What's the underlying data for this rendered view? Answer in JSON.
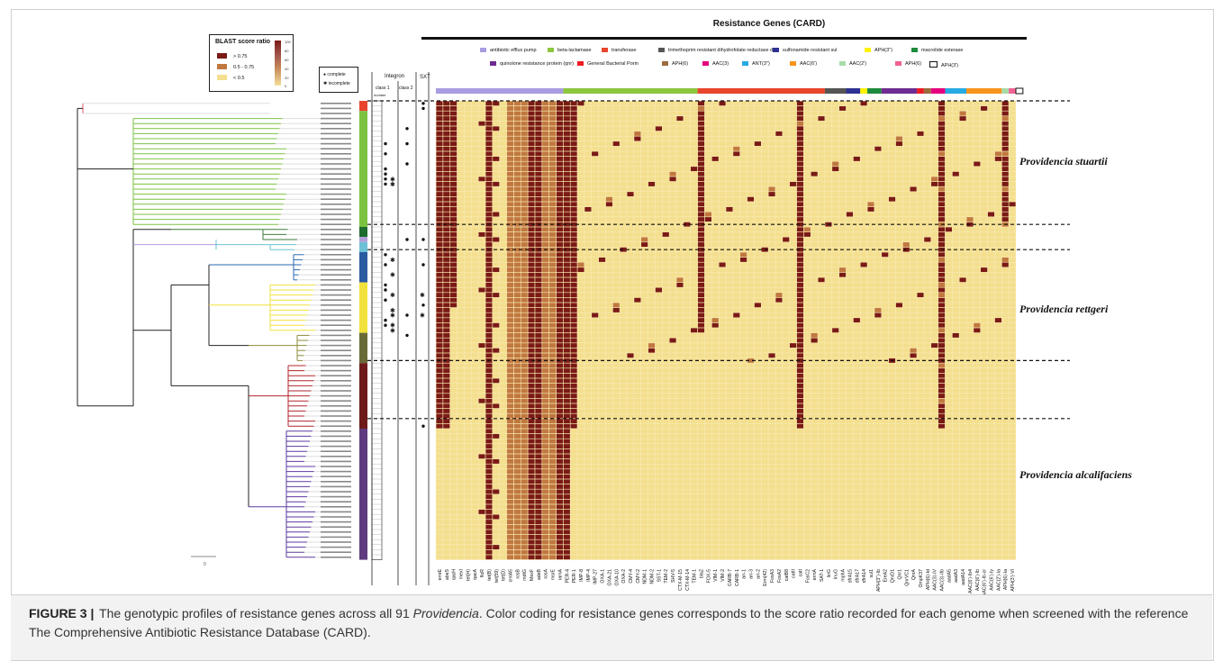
{
  "figure": {
    "resistance_title": "Resistance Genes (CARD)",
    "blast_legend": {
      "title": "BLAST score ratio",
      "rows": [
        {
          "label": "> 0.75",
          "color": "#7a1a16"
        },
        {
          "label": "0.5 - 0.75",
          "color": "#c07840"
        },
        {
          "label": "< 0.5",
          "color": "#f4df8f"
        }
      ],
      "scale_ticks": [
        "100",
        "80",
        "60",
        "40",
        "20",
        "0"
      ]
    },
    "icon_legend": {
      "complete": "complete",
      "incomplete": "incomplete",
      "complete_icon": "filled-circle-icon",
      "incomplete_icon": "asterisk-icon"
    },
    "column_headers": {
      "integron": "Integron",
      "class1": "class 1",
      "class2": "class 2",
      "sxt": "SXT",
      "number": "number"
    },
    "categories": [
      {
        "label": "antibiotic efflux pump",
        "color": "#a99ce0"
      },
      {
        "label": "beta-lactamase",
        "color": "#8dc63f"
      },
      {
        "label": "transferase",
        "color": "#e8452c"
      },
      {
        "label": "trimethoprim resistant dihydrofolate reductase dfr",
        "color": "#555555"
      },
      {
        "label": "sulfonamide resistant sul",
        "color": "#2e3192"
      },
      {
        "label": "APH(3'')",
        "color": "#fff200"
      },
      {
        "label": "macrolide esterase",
        "color": "#1e8a3c"
      },
      {
        "label": "quinolone resistance protein (qnr)",
        "color": "#6f2c91"
      },
      {
        "label": "General Bacterial Porin",
        "color": "#ed1c24"
      },
      {
        "label": "APH(6)",
        "color": "#9c6b3c"
      },
      {
        "label": "AAC(3)",
        "color": "#e6007e"
      },
      {
        "label": "ANT(3'')",
        "color": "#27aae1"
      },
      {
        "label": "AAC(6')",
        "color": "#f7941d"
      },
      {
        "label": "AAC(2')",
        "color": "#a8dba8"
      },
      {
        "label": "APH(6)",
        "color": "#f06292"
      },
      {
        "label": "APH(3')",
        "color": "#ffffff"
      }
    ],
    "genes": [
      "emrE",
      "abeS",
      "qacH",
      "mexI",
      "tet(H)",
      "qacA",
      "floR",
      "tet(B)",
      "tet(59)",
      "tet(D)",
      "cmlA5",
      "rosB",
      "mdtG",
      "MexF",
      "adeB",
      "rosA",
      "msrE",
      "ramA",
      "PER-4",
      "PER-1",
      "IMP-8",
      "IMP-4",
      "IMP-27",
      "OXA-1",
      "OXA-21",
      "OXA-10",
      "OXA-2",
      "CMY-4",
      "CMY-2",
      "NDM-1",
      "NDM-2",
      "SST-1",
      "TEM-2",
      "SHV-5",
      "CTX-M-15",
      "CTX-M-14",
      "TEM-1",
      "blaZ",
      "FOX-5",
      "VIM-1",
      "VIM-2",
      "CARB-7",
      "CARB-1",
      "arr-1",
      "arr-3",
      "arr-2",
      "Erm(42)",
      "FosA3",
      "FosA2",
      "catB8",
      "catII",
      "catI",
      "FosC2",
      "ermA",
      "SAT-1",
      "linG",
      "lnuG",
      "mphA",
      "dfrA15",
      "dfrA17",
      "dfrA14",
      "sul1",
      "APH(3'')-Ib",
      "EreA2",
      "QnrD1",
      "Qnr1",
      "QnrVC1",
      "QnrA",
      "OmpK37",
      "APH(6)-Id",
      "AAC(3)-IV",
      "AAC(3)-IIb",
      "aadA5",
      "aadA3",
      "aadA14",
      "AAC(6')-Ib4",
      "AAC(6')-Ib",
      "AAC(6')-Ib-cr",
      "AAC(6')-Iy",
      "AAC(2')-Ia",
      "APH(6)-Ia",
      "APH(3')-VI"
    ],
    "species": [
      {
        "name": "Providencia stuartii"
      },
      {
        "name": "Providencia rettgeri"
      },
      {
        "name": "Providencia alcalifaciens"
      }
    ],
    "scale_bar": "0",
    "caption": {
      "label": "FIGURE 3 |",
      "text_before": "The genotypic profiles of resistance genes across all 91",
      "italic": "Providencia",
      "text_after": ". Color coding for resistance genes corresponds to the score ratio recorded for each genome when screened with the reference The Comprehensive Antibiotic Resistance Database (CARD)."
    }
  }
}
